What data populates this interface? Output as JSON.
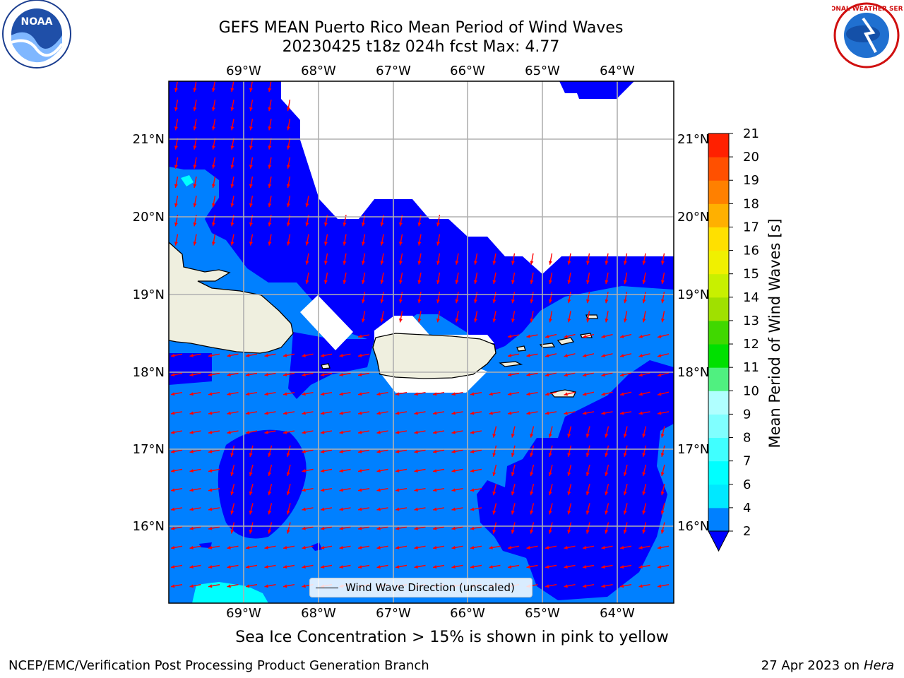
{
  "title": {
    "line1": "GEFS MEAN Puerto Rico Mean Period of Wind Waves",
    "line2": "20230425 t18z 024h fcst   Max: 4.77"
  },
  "map": {
    "lon_ticks": [
      "69°W",
      "68°W",
      "67°W",
      "66°W",
      "65°W",
      "64°W"
    ],
    "lat_ticks": [
      "21°N",
      "20°N",
      "19°N",
      "18°N",
      "17°N",
      "16°N"
    ],
    "legend_label": "Wind Wave Direction (unscaled)",
    "colors": {
      "level_2_4": "#0080ff",
      "level_below_2": "#0000ff",
      "level_4_6": "#00ffff",
      "land": "#efefdf",
      "arrows": "#ff0000"
    }
  },
  "colorbar": {
    "label": "Mean Period of Wind Waves [s]",
    "ticks": [
      "2",
      "4",
      "6",
      "7",
      "8",
      "9",
      "10",
      "11",
      "12",
      "13",
      "14",
      "15",
      "16",
      "17",
      "18",
      "19",
      "20",
      "21"
    ],
    "colors": [
      "#0000ff",
      "#0080ff",
      "#00e8ff",
      "#00ffff",
      "#40ffff",
      "#80ffff",
      "#b0ffff",
      "#50f080",
      "#00e000",
      "#40d800",
      "#a0e000",
      "#c8f000",
      "#f0f000",
      "#ffe000",
      "#ffb000",
      "#ff8000",
      "#ff5000",
      "#ff2000",
      "#ff0000"
    ]
  },
  "caption": "Sea Ice Concentration > 15% is shown in pink to yellow",
  "footer": {
    "left": "NCEP/EMC/Verification Post Processing Product Generation Branch",
    "right_prefix": "27 Apr 2023 on ",
    "right_host": "Hera"
  },
  "logos": {
    "noaa_text": "NOAA",
    "nws_text": "NATIONAL WEATHER SERVICE"
  }
}
